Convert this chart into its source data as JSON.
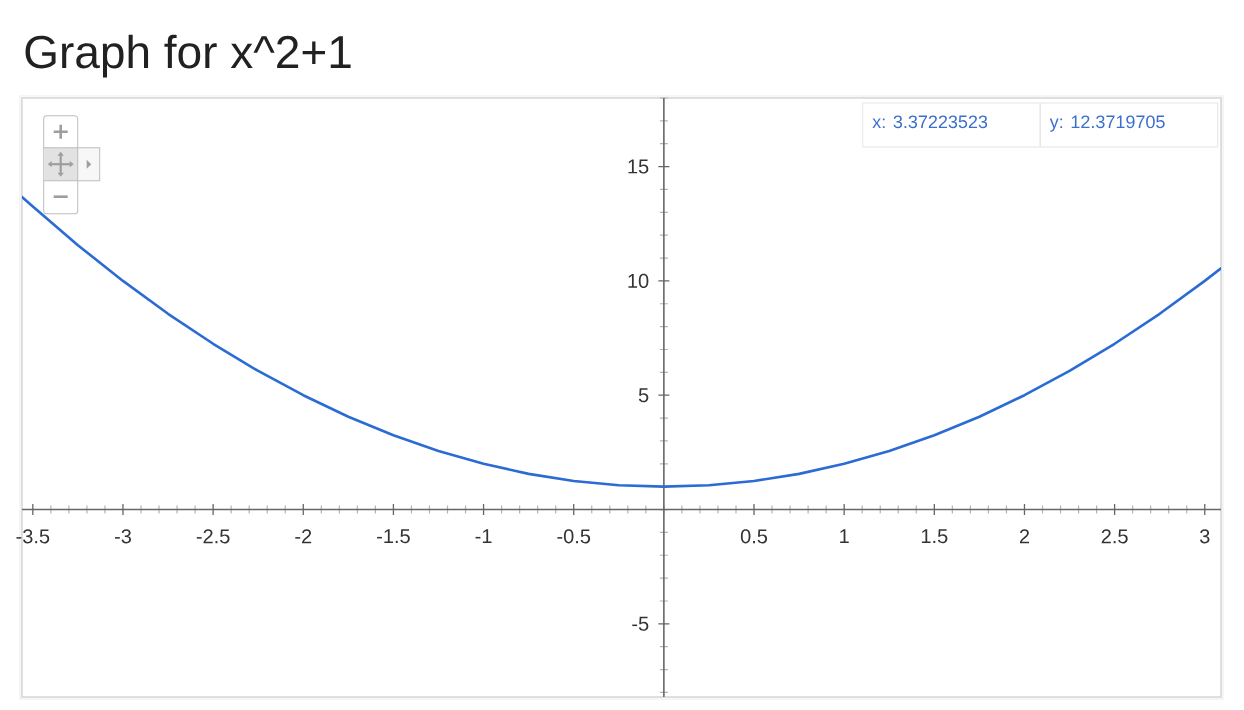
{
  "chart_data": {
    "type": "line",
    "title": "Graph for x^2+1",
    "x": [
      -3.56,
      -3.5,
      -3.25,
      -3,
      -2.75,
      -2.5,
      -2.25,
      -2,
      -1.75,
      -1.5,
      -1.25,
      -1,
      -0.75,
      -0.5,
      -0.25,
      0,
      0.25,
      0.5,
      0.75,
      1,
      1.25,
      1.5,
      1.75,
      2,
      2.25,
      2.5,
      2.75,
      3,
      3.09
    ],
    "values": [
      13.67,
      13.25,
      11.56,
      10,
      8.56,
      7.25,
      6.06,
      5,
      4.06,
      3.25,
      2.56,
      2,
      1.56,
      1.25,
      1.06,
      1,
      1.06,
      1.25,
      1.56,
      2,
      2.56,
      3.25,
      4.06,
      5,
      6.06,
      7.25,
      8.56,
      10,
      10.55
    ],
    "color": "#2b6cd4",
    "xlim": [
      -3.56,
      3.09
    ],
    "ylim": [
      -8.2,
      18
    ],
    "xticks": [
      -3.5,
      -3,
      -2.5,
      -2,
      -1.5,
      -1,
      -0.5,
      0.5,
      1,
      1.5,
      2,
      2.5,
      3
    ],
    "yticks": [
      -5,
      5,
      10,
      15
    ],
    "annotations": [
      "x: 3.37223523",
      "y: 12.3719705"
    ]
  }
}
